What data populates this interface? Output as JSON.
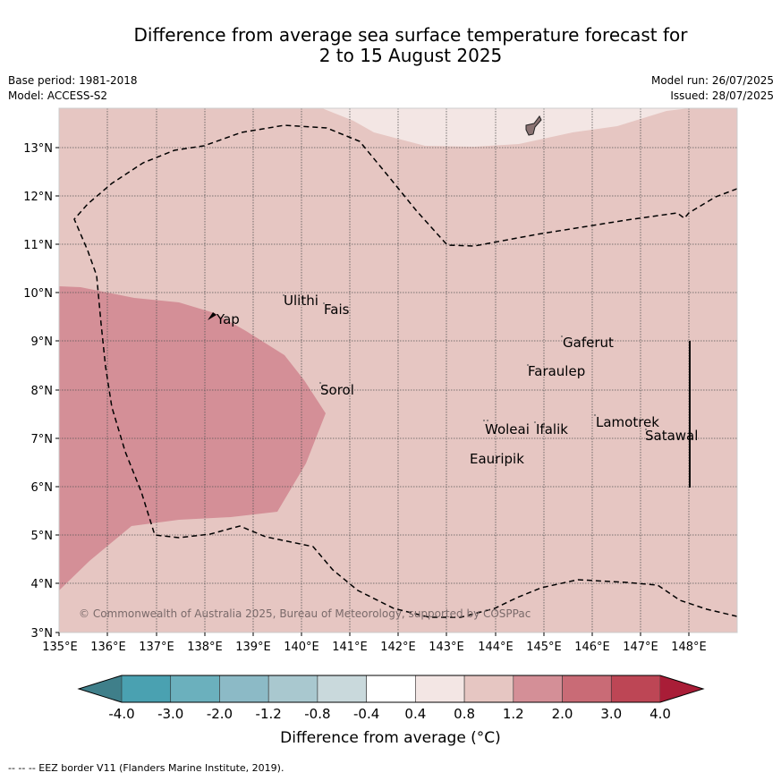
{
  "title": {
    "line1": "Difference from average sea surface temperature forecast for",
    "line2": "2 to 15 August 2025"
  },
  "meta": {
    "base_period": "Base period: 1981-2018",
    "model": "Model: ACCESS-S2",
    "model_run": "Model run: 26/07/2025",
    "issued": "Issued: 28/07/2025"
  },
  "map": {
    "lat_labels": [
      "13°N",
      "12°N",
      "11°N",
      "10°N",
      "9°N",
      "8°N",
      "7°N",
      "6°N",
      "5°N",
      "4°N",
      "3°N"
    ],
    "lon_labels": [
      "135°E",
      "136°E",
      "137°E",
      "138°E",
      "139°E",
      "140°E",
      "141°E",
      "142°E",
      "143°E",
      "144°E",
      "145°E",
      "146°E",
      "147°E",
      "148°E"
    ],
    "places": [
      "Yap",
      "Ulithi",
      "Fais",
      "Gaferut",
      "Faraulep",
      "Sorol",
      "Woleai",
      "Ifalik",
      "Lamotrek",
      "Satawal",
      "Eauripik"
    ],
    "copyright": "© Commonwealth of Australia 2025, Bureau of Meteorology, supported by COSPPac",
    "colors": {
      "background_anomaly": "#e6c6c2",
      "warm_anomaly": "#d48f97",
      "cool_anomaly": "#f3e6e4",
      "land": "#8a7272"
    }
  },
  "colorbar": {
    "ticks": [
      "-4.0",
      "-3.0",
      "-2.0",
      "-1.2",
      "-0.8",
      "-0.4",
      "0.4",
      "0.8",
      "1.2",
      "2.0",
      "3.0",
      "4.0"
    ],
    "colors": [
      "#3f7f8a",
      "#4aa1b1",
      "#6bb0bd",
      "#8cbac6",
      "#a9c8cf",
      "#c9d9dc",
      "#ffffff",
      "#f3e6e4",
      "#e6c6c2",
      "#d48f97",
      "#c96b76",
      "#bd4655",
      "#a91d37"
    ],
    "label": "Difference from average (°C)"
  },
  "footer": "--  --  -- EEZ border V11 (Flanders Marine Institute, 2019)."
}
